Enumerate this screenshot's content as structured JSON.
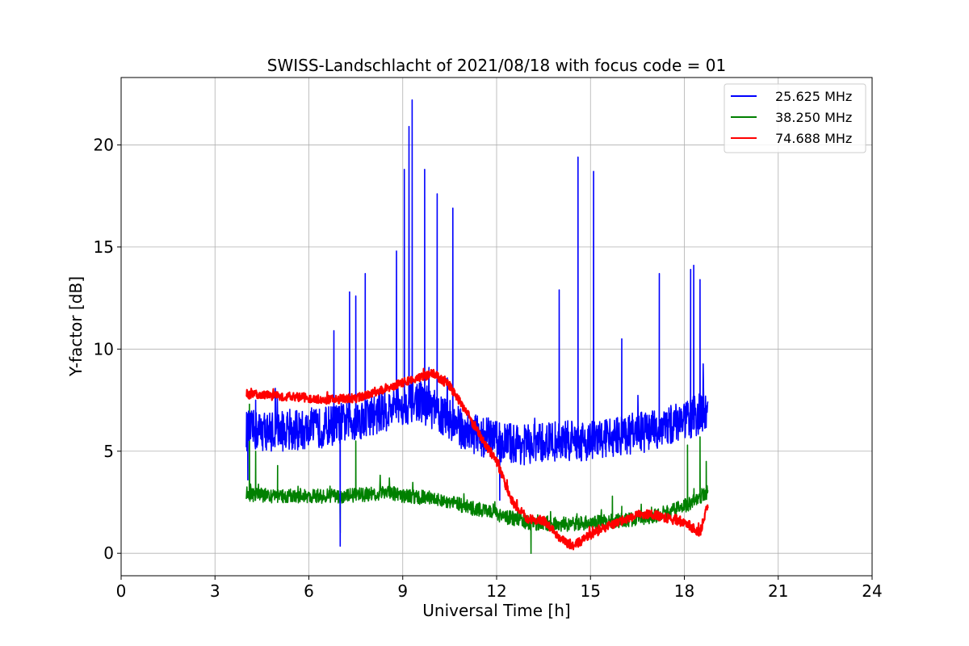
{
  "chart_data": {
    "type": "line",
    "title": "SWISS-Landschlacht of 2021/08/18 with focus code = 01",
    "xlabel": "Universal Time [h]",
    "ylabel": "Y-factor [dB]",
    "xlim": [
      0,
      24
    ],
    "ylim": [
      -1.1,
      23.3
    ],
    "xticks": [
      0,
      3,
      6,
      9,
      12,
      15,
      18,
      21,
      24
    ],
    "xtick_labels": [
      "0",
      "3",
      "6",
      "9",
      "12",
      "15",
      "18",
      "21",
      "24"
    ],
    "yticks": [
      0,
      5,
      10,
      15,
      20
    ],
    "ytick_labels": [
      "0",
      "5",
      "10",
      "15",
      "20"
    ],
    "grid": true,
    "legend_position": "top-right",
    "series": [
      {
        "name": "25.625 MHz",
        "color": "#0000ff",
        "baseline": [
          [
            4.0,
            6.0
          ],
          [
            6.0,
            6.0
          ],
          [
            6.8,
            6.3
          ],
          [
            7.5,
            6.5
          ],
          [
            8.5,
            7.0
          ],
          [
            9.5,
            7.5
          ],
          [
            10.0,
            7.0
          ],
          [
            10.5,
            6.5
          ],
          [
            11.0,
            6.0
          ],
          [
            12.0,
            5.5
          ],
          [
            13.0,
            5.3
          ],
          [
            14.0,
            5.5
          ],
          [
            15.0,
            5.5
          ],
          [
            16.0,
            5.8
          ],
          [
            17.0,
            6.0
          ],
          [
            18.0,
            6.5
          ],
          [
            18.75,
            7.0
          ]
        ],
        "noise": 1.0,
        "peaks": [
          [
            4.05,
            3.6
          ],
          [
            4.3,
            7.5
          ],
          [
            6.8,
            10.9
          ],
          [
            7.0,
            0.35
          ],
          [
            7.3,
            12.8
          ],
          [
            7.5,
            12.6
          ],
          [
            7.8,
            13.7
          ],
          [
            8.8,
            14.8
          ],
          [
            9.05,
            18.8
          ],
          [
            9.2,
            20.9
          ],
          [
            9.3,
            22.2
          ],
          [
            9.7,
            18.8
          ],
          [
            10.1,
            17.6
          ],
          [
            10.6,
            16.9
          ],
          [
            12.1,
            2.6
          ],
          [
            14.0,
            12.9
          ],
          [
            14.6,
            19.4
          ],
          [
            15.1,
            18.7
          ],
          [
            16.0,
            10.5
          ],
          [
            17.2,
            13.7
          ],
          [
            18.2,
            13.9
          ],
          [
            18.3,
            14.1
          ],
          [
            18.5,
            13.4
          ]
        ]
      },
      {
        "name": "38.250 MHz",
        "color": "#008000",
        "baseline": [
          [
            4.0,
            2.9
          ],
          [
            5.0,
            2.8
          ],
          [
            6.0,
            2.8
          ],
          [
            7.0,
            2.8
          ],
          [
            8.0,
            2.9
          ],
          [
            8.5,
            3.0
          ],
          [
            9.0,
            2.8
          ],
          [
            10.0,
            2.7
          ],
          [
            11.0,
            2.3
          ],
          [
            12.0,
            1.9
          ],
          [
            13.0,
            1.5
          ],
          [
            14.0,
            1.4
          ],
          [
            15.0,
            1.5
          ],
          [
            16.0,
            1.6
          ],
          [
            17.0,
            1.8
          ],
          [
            18.0,
            2.3
          ],
          [
            18.75,
            3.0
          ]
        ],
        "noise": 0.35,
        "peaks": [
          [
            4.1,
            7.3
          ],
          [
            4.3,
            5.0
          ],
          [
            5.0,
            4.3
          ],
          [
            7.0,
            1.0
          ],
          [
            7.5,
            5.5
          ],
          [
            13.1,
            0.0
          ],
          [
            15.7,
            2.8
          ],
          [
            16.0,
            2.3
          ],
          [
            18.1,
            5.3
          ],
          [
            18.5,
            5.7
          ],
          [
            18.7,
            4.5
          ]
        ]
      },
      {
        "name": "74.688 MHz",
        "color": "#ff0000",
        "baseline": [
          [
            4.0,
            7.8
          ],
          [
            5.0,
            7.7
          ],
          [
            6.0,
            7.6
          ],
          [
            6.5,
            7.5
          ],
          [
            7.5,
            7.6
          ],
          [
            8.5,
            8.1
          ],
          [
            9.5,
            8.6
          ],
          [
            10.0,
            8.8
          ],
          [
            10.5,
            8.2
          ],
          [
            11.0,
            7.0
          ],
          [
            11.5,
            5.7
          ],
          [
            12.0,
            4.5
          ],
          [
            12.5,
            2.5
          ],
          [
            13.0,
            1.7
          ],
          [
            13.5,
            1.6
          ],
          [
            14.0,
            0.8
          ],
          [
            14.4,
            0.3
          ],
          [
            15.0,
            0.9
          ],
          [
            15.5,
            1.3
          ],
          [
            16.0,
            1.6
          ],
          [
            16.5,
            1.9
          ],
          [
            17.0,
            1.9
          ],
          [
            17.5,
            1.7
          ],
          [
            18.0,
            1.5
          ],
          [
            18.3,
            1.2
          ],
          [
            18.5,
            1.0
          ],
          [
            18.75,
            2.4
          ]
        ],
        "noise": 0.22,
        "peaks": []
      }
    ]
  }
}
